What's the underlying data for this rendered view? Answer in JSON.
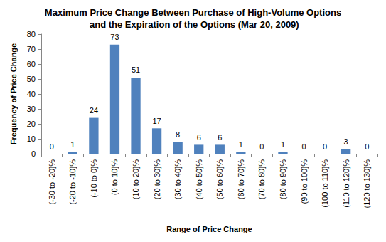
{
  "chart_data": {
    "type": "bar",
    "title": "Maximum Price Change Between Purchase of High-Volume Options and the Expiration of the Options (Mar 20, 2009)",
    "x_label": "Range of Price Change",
    "y_label": "Frequency of Price Change",
    "categories": [
      "(-30 to -20]%",
      "(-20 to -10]%",
      "(-10 to 0]%",
      "(0 to 10]%",
      "(10 to 20]%",
      "(20 to 30]%",
      "(30 to 40]%",
      "(40 to 50]%",
      "(50 to 60]%",
      "(60 to 70]%",
      "(70 to 80]%",
      "(80 to 90]%",
      "(90 to 100]%",
      "(100 to 110]%",
      "(110 to 120]%",
      "(120 to 130]%"
    ],
    "values": [
      0,
      1,
      24,
      73,
      51,
      17,
      8,
      6,
      6,
      1,
      0,
      1,
      0,
      0,
      3,
      0
    ],
    "color": "#4f81bd",
    "ylim": [
      0,
      80
    ],
    "yticks": [
      0,
      10,
      20,
      30,
      40,
      50,
      60,
      70,
      80
    ],
    "grid": false,
    "data_labels": true
  }
}
